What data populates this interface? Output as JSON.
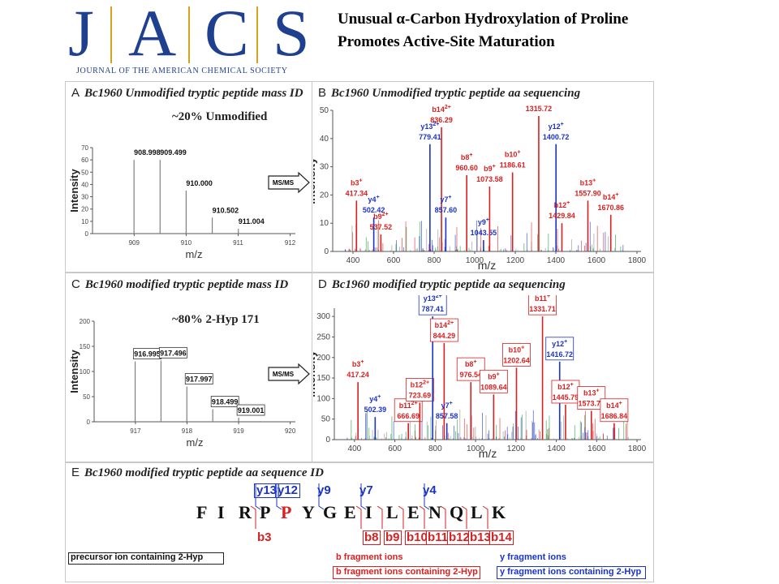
{
  "logo": {
    "letters": [
      "J",
      "A",
      "C",
      "S"
    ],
    "journal_name": "JOURNAL OF THE AMERICAN CHEMICAL SOCIETY"
  },
  "title": "Unusual α-Carbon Hydroxylation of Proline Promotes Active-Site Maturation",
  "panels": {
    "a": {
      "letter": "A",
      "title": "Bc1960 Unmodified tryptic peptide mass ID",
      "percent": "~20% Unmodified"
    },
    "b": {
      "letter": "B",
      "title": "Bc1960 Unmodified tryptic peptide aa sequencing"
    },
    "c": {
      "letter": "C",
      "title": "Bc1960 modified tryptic peptide mass ID",
      "percent": "~80% 2-Hyp 171"
    },
    "d": {
      "letter": "D",
      "title": "Bc1960 modified tryptic peptide aa sequencing"
    },
    "e": {
      "letter": "E",
      "title": "Bc1960 modified tryptic peptide aa sequence ID"
    }
  },
  "msms_label": "MS/MS",
  "chart_data": [
    {
      "id": "A",
      "type": "bar",
      "xlabel": "m/z",
      "ylabel": "Intensity",
      "xlim": [
        908.2,
        912.1
      ],
      "ylim": [
        0,
        70
      ],
      "xticks": [
        909,
        910,
        911,
        912
      ],
      "yticks": [
        0,
        10,
        20,
        30,
        40,
        50,
        60,
        70
      ],
      "peaks": [
        {
          "x": 908.998,
          "y": 60,
          "label": "908.998",
          "boxed": false
        },
        {
          "x": 909.499,
          "y": 60,
          "label": "909.499",
          "boxed": false
        },
        {
          "x": 910.0,
          "y": 35,
          "label": "910.000",
          "boxed": false
        },
        {
          "x": 910.502,
          "y": 13,
          "label": "910.502",
          "boxed": false
        },
        {
          "x": 911.004,
          "y": 4,
          "label": "911.004",
          "boxed": false
        }
      ]
    },
    {
      "id": "B",
      "type": "bar",
      "xlabel": "m/z",
      "ylabel": "Intensity",
      "xlim": [
        300,
        1820
      ],
      "ylim": [
        0,
        50
      ],
      "xticks": [
        400,
        600,
        800,
        1000,
        1200,
        1400,
        1600,
        1800
      ],
      "yticks": [
        0,
        10,
        20,
        30,
        40,
        50
      ],
      "peaks": [
        {
          "x": 417.34,
          "y": 18,
          "ion": "b3",
          "charge": "+",
          "mass": "417.34",
          "color": "#d91f1f",
          "boxed": false
        },
        {
          "x": 502.42,
          "y": 12,
          "ion": "y4",
          "charge": "+",
          "mass": "502.42",
          "color": "#1a33c8",
          "boxed": false
        },
        {
          "x": 537.52,
          "y": 6,
          "ion": "b9",
          "charge": "2+",
          "mass": "537.52",
          "color": "#d91f1f",
          "boxed": false
        },
        {
          "x": 779.41,
          "y": 38,
          "ion": "y13",
          "charge": "2+",
          "mass": "779.41",
          "color": "#1a33c8",
          "boxed": false
        },
        {
          "x": 836.29,
          "y": 44,
          "ion": "b14",
          "charge": "2+",
          "mass": "836.29",
          "color": "#d91f1f",
          "boxed": false
        },
        {
          "x": 857.6,
          "y": 12,
          "ion": "y7",
          "charge": "+",
          "mass": "857.60",
          "color": "#1a33c8",
          "boxed": false
        },
        {
          "x": 960.6,
          "y": 27,
          "ion": "b8",
          "charge": "+",
          "mass": "960.60",
          "color": "#d91f1f",
          "boxed": false
        },
        {
          "x": 1043.55,
          "y": 4,
          "ion": "y9",
          "charge": "+",
          "mass": "1043.55",
          "color": "#1a33c8",
          "boxed": false
        },
        {
          "x": 1073.58,
          "y": 23,
          "ion": "b9",
          "charge": "+",
          "mass": "1073.58",
          "color": "#d91f1f",
          "boxed": false
        },
        {
          "x": 1186.61,
          "y": 28,
          "ion": "b10",
          "charge": "+",
          "mass": "1186.61",
          "color": "#d91f1f",
          "boxed": false
        },
        {
          "x": 1315.72,
          "y": 48,
          "ion": "b11",
          "charge": "+",
          "mass": "1315.72",
          "color": "#d91f1f",
          "boxed": false
        },
        {
          "x": 1400.72,
          "y": 38,
          "ion": "y12",
          "charge": "+",
          "mass": "1400.72",
          "color": "#1a33c8",
          "boxed": false
        },
        {
          "x": 1429.84,
          "y": 10,
          "ion": "b12",
          "charge": "+",
          "mass": "1429.84",
          "color": "#d91f1f",
          "boxed": false
        },
        {
          "x": 1557.9,
          "y": 18,
          "ion": "b13",
          "charge": "+",
          "mass": "1557.90",
          "color": "#d91f1f",
          "boxed": false
        },
        {
          "x": 1670.86,
          "y": 13,
          "ion": "b14",
          "charge": "+",
          "mass": "1670.86",
          "color": "#d91f1f",
          "boxed": false
        }
      ]
    },
    {
      "id": "C",
      "type": "bar",
      "xlabel": "m/z",
      "ylabel": "Intensity",
      "xlim": [
        916.2,
        920.1
      ],
      "ylim": [
        0,
        200
      ],
      "xticks": [
        917,
        918,
        919,
        920
      ],
      "yticks": [
        0,
        50,
        100,
        150,
        200
      ],
      "peaks": [
        {
          "x": 916.995,
          "y": 120,
          "label": "916.995",
          "boxed": true
        },
        {
          "x": 917.496,
          "y": 122,
          "label": "917.496",
          "boxed": true
        },
        {
          "x": 917.997,
          "y": 70,
          "label": "917.997",
          "boxed": true
        },
        {
          "x": 918.499,
          "y": 25,
          "label": "918.499",
          "boxed": true
        },
        {
          "x": 919.001,
          "y": 8,
          "label": "919.001",
          "boxed": true
        }
      ]
    },
    {
      "id": "D",
      "type": "bar",
      "xlabel": "m/z",
      "ylabel": "Intensity",
      "xlim": [
        300,
        1820
      ],
      "ylim": [
        0,
        320
      ],
      "xticks": [
        400,
        600,
        800,
        1000,
        1200,
        1400,
        1600,
        1800
      ],
      "yticks": [
        0,
        50,
        100,
        150,
        200,
        250,
        300
      ],
      "peaks": [
        {
          "x": 417.24,
          "y": 140,
          "ion": "b3",
          "charge": "+",
          "mass": "417.24",
          "color": "#d91f1f",
          "boxed": false
        },
        {
          "x": 502.39,
          "y": 55,
          "ion": "y4",
          "charge": "+",
          "mass": "502.39",
          "color": "#1a33c8",
          "boxed": false
        },
        {
          "x": 666.69,
          "y": 40,
          "ion": "b11",
          "charge": "2+",
          "mass": "666.69",
          "color": "#d91f1f",
          "boxed": true
        },
        {
          "x": 723.69,
          "y": 90,
          "ion": "b12",
          "charge": "2+",
          "mass": "723.69",
          "color": "#d91f1f",
          "boxed": true
        },
        {
          "x": 787.41,
          "y": 300,
          "ion": "y13",
          "charge": "2+",
          "mass": "787.41",
          "color": "#1a33c8",
          "boxed": true
        },
        {
          "x": 844.29,
          "y": 235,
          "ion": "b14",
          "charge": "2+",
          "mass": "844.29",
          "color": "#d91f1f",
          "boxed": true
        },
        {
          "x": 857.58,
          "y": 40,
          "ion": "y7",
          "charge": "+",
          "mass": "857.58",
          "color": "#1a33c8",
          "boxed": false
        },
        {
          "x": 976.54,
          "y": 140,
          "ion": "b8",
          "charge": "+",
          "mass": "976.54",
          "color": "#d91f1f",
          "boxed": true
        },
        {
          "x": 1089.64,
          "y": 110,
          "ion": "b9",
          "charge": "+",
          "mass": "1089.64",
          "color": "#d91f1f",
          "boxed": true
        },
        {
          "x": 1202.64,
          "y": 175,
          "ion": "b10",
          "charge": "+",
          "mass": "1202.64",
          "color": "#d91f1f",
          "boxed": true
        },
        {
          "x": 1331.71,
          "y": 300,
          "ion": "b11",
          "charge": "+",
          "mass": "1331.71",
          "color": "#d91f1f",
          "boxed": true
        },
        {
          "x": 1416.72,
          "y": 190,
          "ion": "y12",
          "charge": "+",
          "mass": "1416.72",
          "color": "#1a33c8",
          "boxed": true
        },
        {
          "x": 1445.79,
          "y": 85,
          "ion": "b12",
          "charge": "+",
          "mass": "1445.79",
          "color": "#d91f1f",
          "boxed": true
        },
        {
          "x": 1573.79,
          "y": 70,
          "ion": "b13",
          "charge": "+",
          "mass": "1573.79",
          "color": "#d91f1f",
          "boxed": true
        },
        {
          "x": 1686.84,
          "y": 40,
          "ion": "b14",
          "charge": "+",
          "mass": "1686.84",
          "color": "#d91f1f",
          "boxed": true
        }
      ]
    }
  ],
  "sequence": {
    "residues": [
      "F",
      "I",
      "R",
      "P",
      "P",
      "Y",
      "G",
      "E",
      "I",
      "L",
      "E",
      "N",
      "Q",
      "L",
      "K"
    ],
    "highlight_index": 4,
    "highlight_color": "#d91f1f",
    "y_ions": [
      "y13",
      "y12",
      "y9",
      "y7",
      "y4"
    ],
    "b_ions": [
      "b3",
      "b8",
      "b9",
      "b10",
      "b11",
      "b12",
      "b13",
      "b14"
    ]
  },
  "legend": {
    "precursor": "precursor ion containing 2-Hyp",
    "b_fragment": "b fragment ions",
    "b_fragment_2hyp": "b fragment ions containing 2-Hyp",
    "y_fragment": "y fragment ions",
    "y_fragment_2hyp": "y fragment ions containing 2-Hyp"
  },
  "colors": {
    "b_ion": "#d91f1f",
    "y_ion": "#1a33c8",
    "logo_blue": "#1f3f8f",
    "logo_gold": "#d8a21c"
  }
}
